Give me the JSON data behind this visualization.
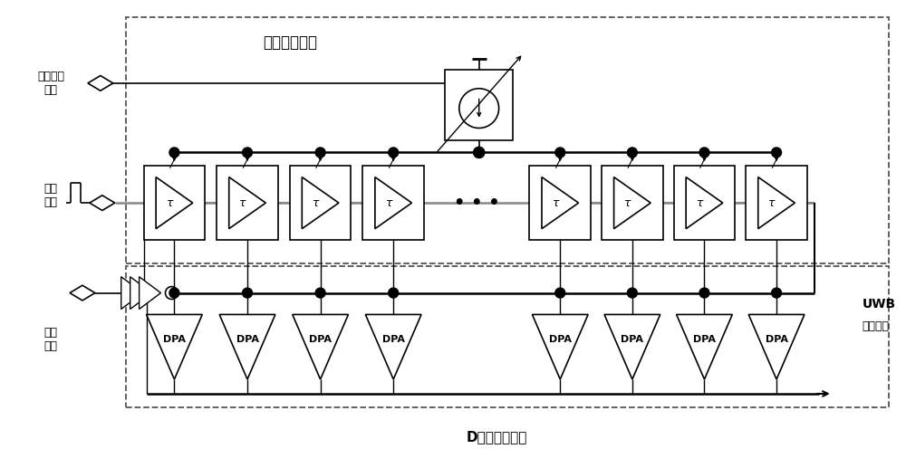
{
  "fig_width": 10.0,
  "fig_height": 4.96,
  "bg_color": "#ffffff",
  "line_color": "#000000",
  "title_programmable": "可编程延迟线",
  "title_class_d": "D类功率放大器",
  "label_delay_control": "延时时间\n控制",
  "label_pulse_trigger": "脉冲\n触发",
  "label_carrier_input": "载波\n输入",
  "label_uwb_line1": "UWB",
  "label_uwb_line2": "脉冲输出",
  "tau_symbol": "τ",
  "dpa_label": "DPA"
}
